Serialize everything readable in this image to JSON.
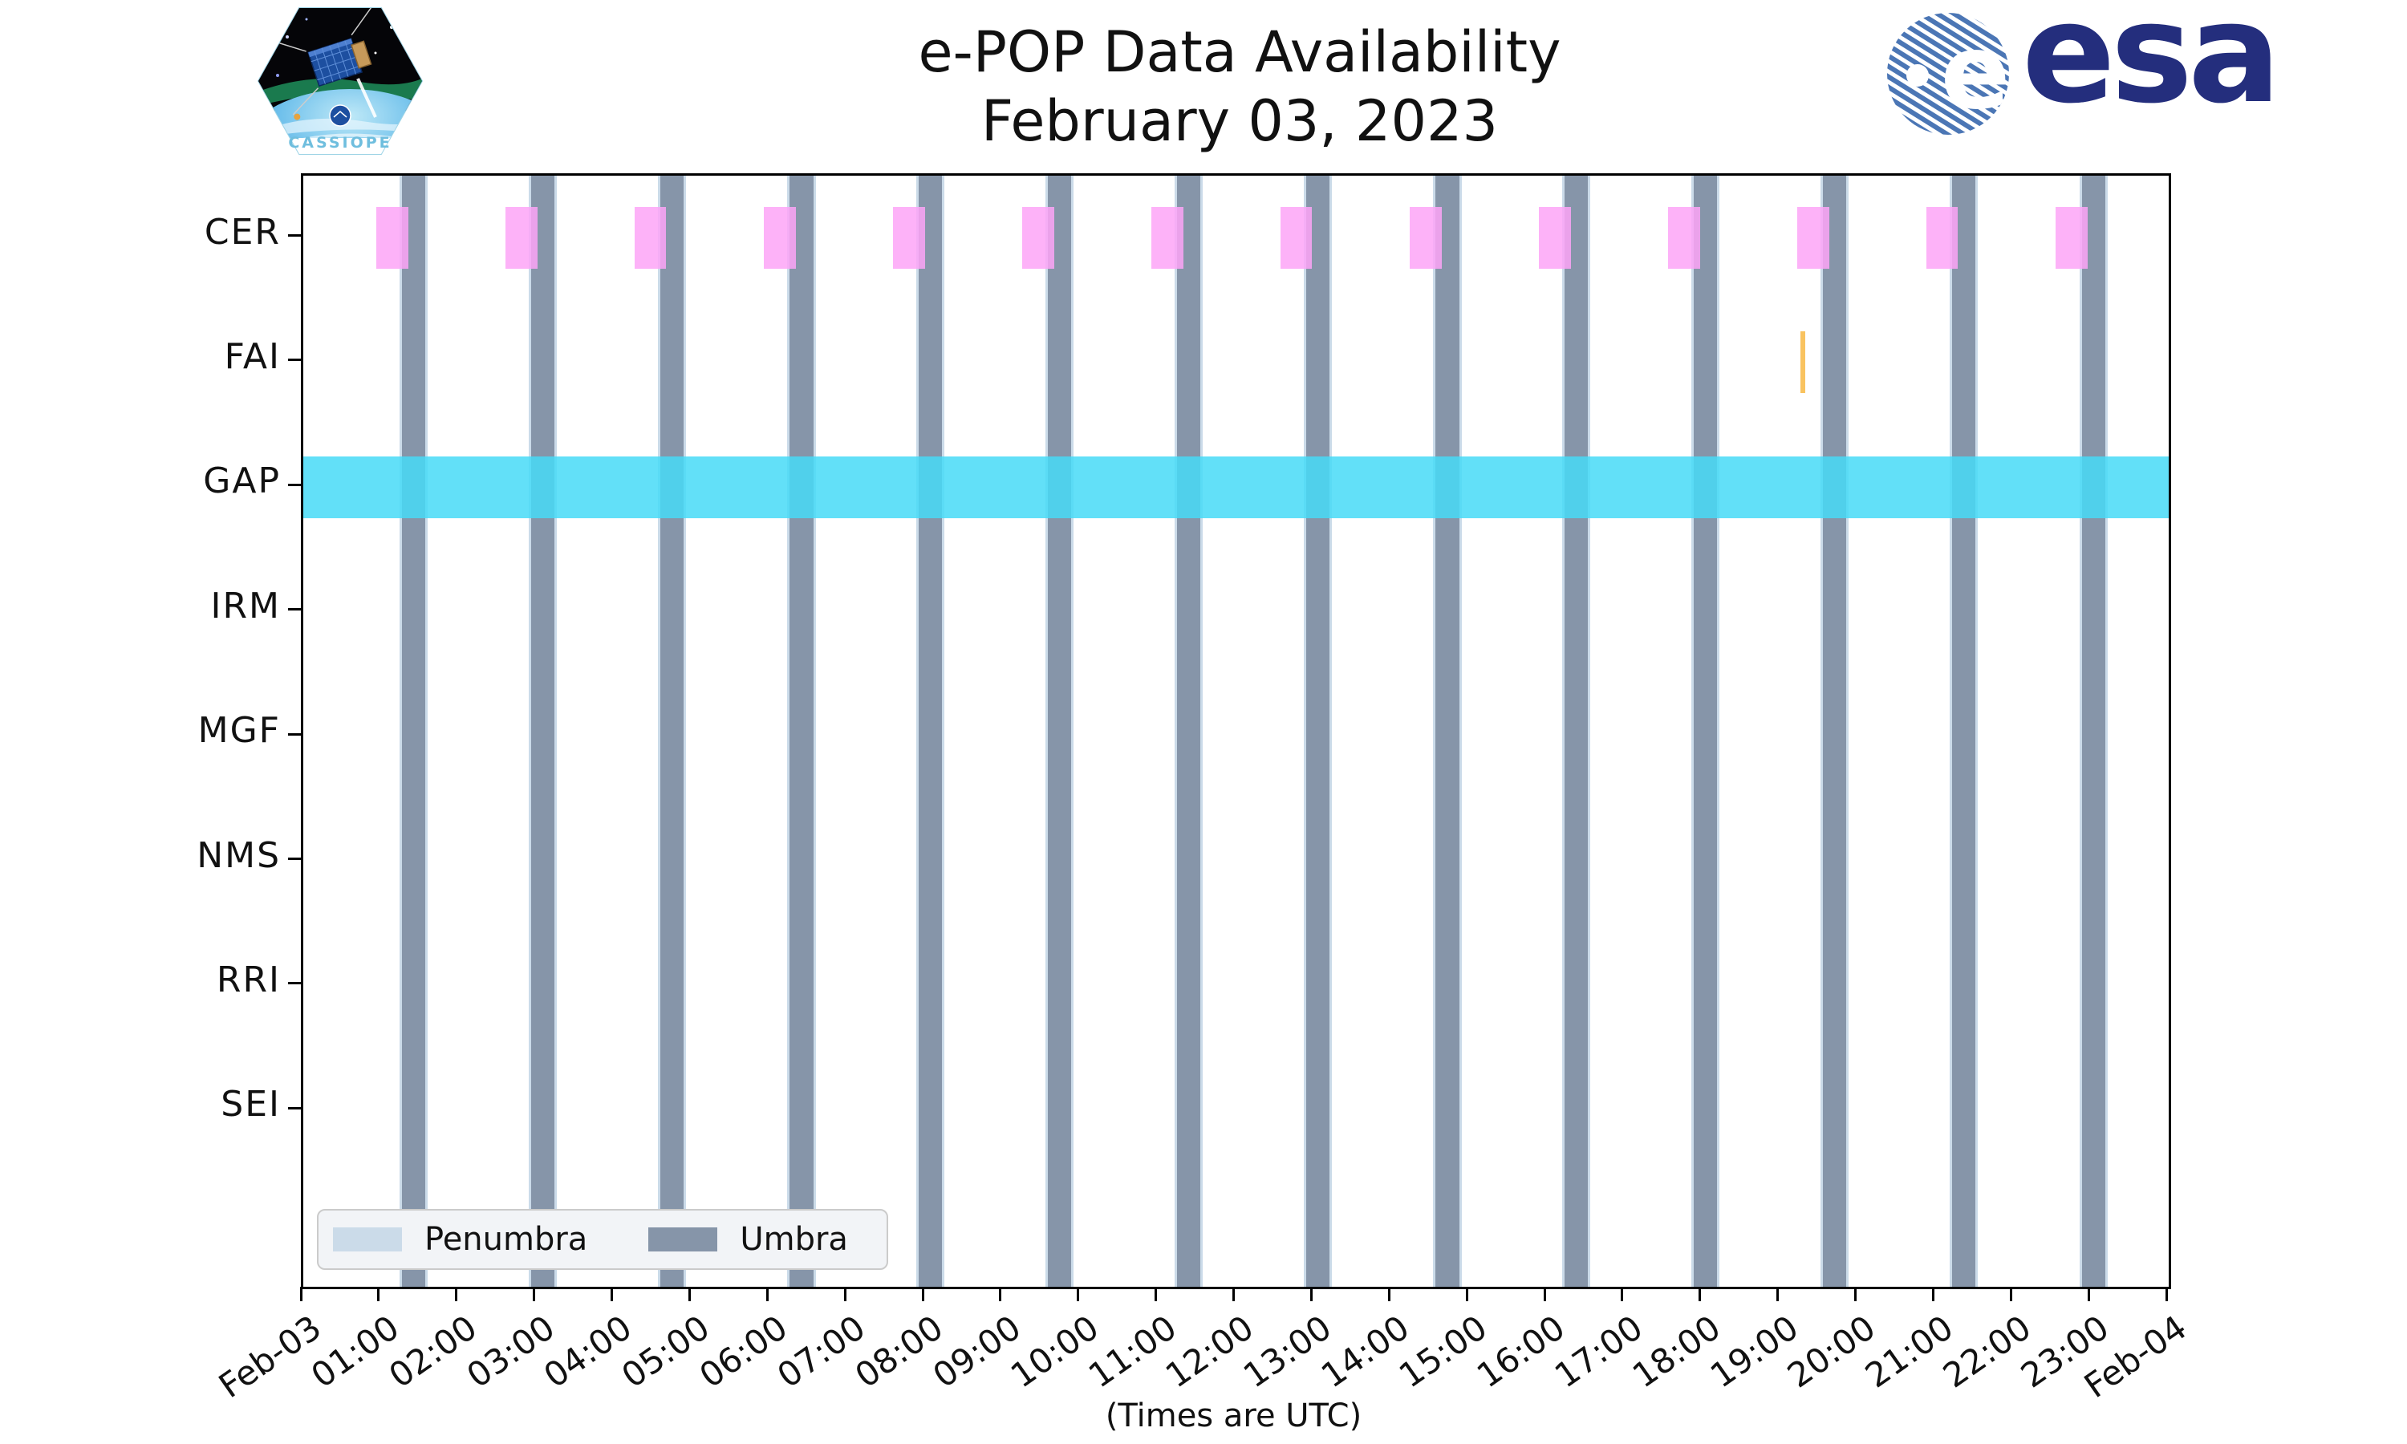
{
  "header": {
    "title": "e-POP Data Availability",
    "subtitle": "February 03, 2023",
    "patch_label": "CASSIOPE",
    "esa_wordmark": "esa"
  },
  "axes": {
    "x_label": "(Times are UTC)",
    "x_ticks": [
      "Feb-03",
      "01:00",
      "02:00",
      "03:00",
      "04:00",
      "05:00",
      "06:00",
      "07:00",
      "08:00",
      "09:00",
      "10:00",
      "11:00",
      "12:00",
      "13:00",
      "14:00",
      "15:00",
      "16:00",
      "17:00",
      "18:00",
      "19:00",
      "20:00",
      "21:00",
      "22:00",
      "23:00",
      "Feb-04"
    ],
    "y_ticks": [
      "CER",
      "FAI",
      "GAP",
      "IRM",
      "MGF",
      "NMS",
      "RRI",
      "SEI"
    ]
  },
  "legend": {
    "items": [
      {
        "label": "Penumbra",
        "color": "#CBDBE9"
      },
      {
        "label": "Umbra",
        "color": "#8695A9"
      }
    ]
  },
  "colors": {
    "umbra": "#8695A9",
    "penumbra_edge": "#CBDBE9",
    "cer": "#FDA5F7",
    "fai": "#F9C360",
    "gap": "#46DBF7",
    "esa_navy": "#242E7D",
    "esa_globe_blue": "#4B76B5"
  },
  "chart_data": {
    "type": "timeline",
    "title": "e-POP Data Availability",
    "subtitle": "February 03, 2023",
    "xlabel": "(Times are UTC)",
    "x_range_hours": [
      0,
      24
    ],
    "x_tick_labels": [
      "Feb-03",
      "01:00",
      "02:00",
      "03:00",
      "04:00",
      "05:00",
      "06:00",
      "07:00",
      "08:00",
      "09:00",
      "10:00",
      "11:00",
      "12:00",
      "13:00",
      "14:00",
      "15:00",
      "16:00",
      "17:00",
      "18:00",
      "19:00",
      "20:00",
      "21:00",
      "22:00",
      "23:00",
      "Feb-04"
    ],
    "rows": [
      "CER",
      "FAI",
      "GAP",
      "IRM",
      "MGF",
      "NMS",
      "RRI",
      "SEI"
    ],
    "umbra_intervals_utc_hours": [
      [
        1.27,
        1.57
      ],
      [
        2.93,
        3.23
      ],
      [
        4.59,
        4.89
      ],
      [
        6.26,
        6.56
      ],
      [
        7.92,
        8.22
      ],
      [
        9.58,
        9.88
      ],
      [
        11.24,
        11.54
      ],
      [
        12.9,
        13.2
      ],
      [
        14.57,
        14.87
      ],
      [
        16.23,
        16.53
      ],
      [
        17.89,
        18.19
      ],
      [
        19.55,
        19.85
      ],
      [
        21.21,
        21.51
      ],
      [
        22.88,
        23.18
      ]
    ],
    "series": [
      {
        "row": "CER",
        "color": "#FDA5F7",
        "opacity": 0.85,
        "intervals": [
          [
            0.94,
            1.35
          ],
          [
            2.6,
            3.01
          ],
          [
            4.26,
            4.67
          ],
          [
            5.92,
            6.34
          ],
          [
            7.59,
            8.0
          ],
          [
            9.25,
            9.66
          ],
          [
            10.91,
            11.32
          ],
          [
            12.57,
            12.98
          ],
          [
            14.23,
            14.65
          ],
          [
            15.9,
            16.31
          ],
          [
            17.56,
            17.97
          ],
          [
            19.22,
            19.63
          ],
          [
            20.88,
            21.29
          ],
          [
            22.54,
            22.96
          ]
        ]
      },
      {
        "row": "FAI",
        "color": "#F9C360",
        "opacity": 1,
        "intervals": [
          [
            19.26,
            19.32
          ]
        ]
      },
      {
        "row": "GAP",
        "color": "#46DBF7",
        "opacity": 0.85,
        "intervals": [
          [
            0,
            24
          ]
        ]
      }
    ],
    "legend_entries": [
      "Penumbra",
      "Umbra"
    ],
    "legend_position": "lower left",
    "grid": false
  }
}
